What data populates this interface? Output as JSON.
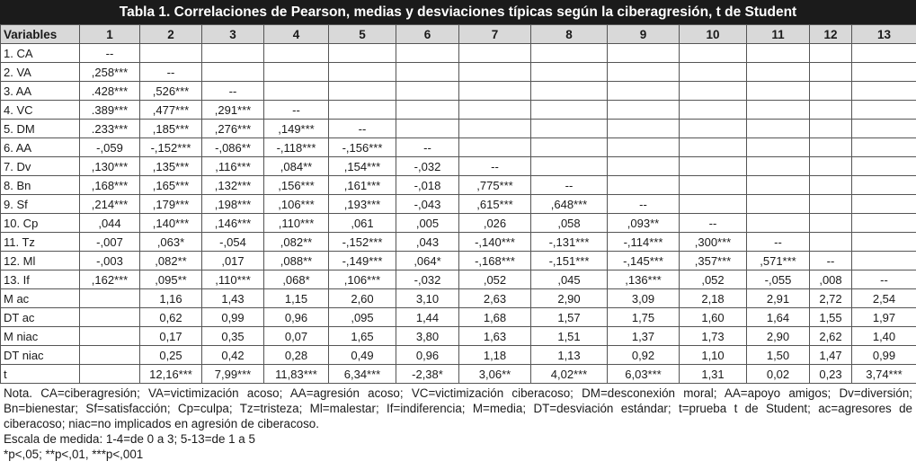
{
  "title": "Tabla 1. Correlaciones de Pearson, medias y desviaciones típicas según la ciberagresión, t de Student",
  "table": {
    "header": [
      "Variables",
      "1",
      "2",
      "3",
      "4",
      "5",
      "6",
      "7",
      "8",
      "9",
      "10",
      "11",
      "12",
      "13"
    ],
    "rows": [
      [
        "1. CA",
        "--",
        null,
        null,
        null,
        null,
        null,
        null,
        null,
        null,
        null,
        null,
        null,
        null
      ],
      [
        "2. VA",
        ",258***",
        "--",
        null,
        null,
        null,
        null,
        null,
        null,
        null,
        null,
        null,
        null,
        null
      ],
      [
        "3. AA",
        ".428***",
        ",526***",
        "--",
        null,
        null,
        null,
        null,
        null,
        null,
        null,
        null,
        null,
        null
      ],
      [
        "4. VC",
        ".389***",
        ",477***",
        ",291***",
        "--",
        null,
        null,
        null,
        null,
        null,
        null,
        null,
        null,
        null
      ],
      [
        "5. DM",
        ".233***",
        ",185***",
        ",276***",
        ",149***",
        "--",
        null,
        null,
        null,
        null,
        null,
        null,
        null,
        null
      ],
      [
        "6. AA",
        "-,059",
        "-,152***",
        "-,086**",
        "-,118***",
        "-,156***",
        "--",
        null,
        null,
        null,
        null,
        null,
        null,
        null
      ],
      [
        "7. Dv",
        ",130***",
        ",135***",
        ",116***",
        ",084**",
        ",154***",
        "-,032",
        "--",
        null,
        null,
        null,
        null,
        null,
        null
      ],
      [
        "8. Bn",
        ",168***",
        ",165***",
        ",132***",
        ",156***",
        ",161***",
        "-,018",
        ",775***",
        "--",
        null,
        null,
        null,
        null,
        null
      ],
      [
        "9. Sf",
        ",214***",
        ",179***",
        ",198***",
        ",106***",
        ",193***",
        "-,043",
        ",615***",
        ",648***",
        "--",
        null,
        null,
        null,
        null
      ],
      [
        "10. Cp",
        ",044",
        ",140***",
        ",146***",
        ",110***",
        ",061",
        ",005",
        ",026",
        ",058",
        ",093**",
        "--",
        null,
        null,
        null
      ],
      [
        "11. Tz",
        "-,007",
        ",063*",
        "-,054",
        ",082**",
        "-,152***",
        ",043",
        "-,140***",
        "-,131***",
        "-,114***",
        ",300***",
        "--",
        null,
        null
      ],
      [
        "12. Ml",
        "-,003",
        ",082**",
        ",017",
        ",088**",
        "-,149***",
        ",064*",
        "-,168***",
        "-,151***",
        "-,145***",
        ",357***",
        ",571***",
        "--",
        null
      ],
      [
        "13. If",
        ",162***",
        ",095**",
        ",110***",
        ",068*",
        ",106***",
        "-,032",
        ",052",
        ",045",
        ",136***",
        ",052",
        "-,055",
        ",008",
        "--"
      ],
      [
        "M ac",
        null,
        "1,16",
        "1,43",
        "1,15",
        "2,60",
        "3,10",
        "2,63",
        "2,90",
        "3,09",
        "2,18",
        "2,91",
        "2,72",
        "2,54"
      ],
      [
        "DT ac",
        null,
        "0,62",
        "0,99",
        "0,96",
        ",095",
        "1,44",
        "1,68",
        "1,57",
        "1,75",
        "1,60",
        "1,64",
        "1,55",
        "1,97"
      ],
      [
        "M niac",
        null,
        "0,17",
        "0,35",
        "0,07",
        "1,65",
        "3,80",
        "1,63",
        "1,51",
        "1,37",
        "1,73",
        "2,90",
        "2,62",
        "1,40"
      ],
      [
        "DT niac",
        null,
        "0,25",
        "0,42",
        "0,28",
        "0,49",
        "0,96",
        "1,18",
        "1,13",
        "0,92",
        "1,10",
        "1,50",
        "1,47",
        "0,99"
      ],
      [
        "t",
        null,
        "12,16***",
        "7,99***",
        "11,83***",
        "6,34***",
        "-2,38*",
        "3,06**",
        "4,02***",
        "6,03***",
        "1,31",
        "0,02",
        "0,23",
        "3,74***"
      ]
    ]
  },
  "notes": [
    "Nota. CA=ciberagresión; VA=victimización acoso; AA=agresión acoso; VC=victimización ciberacoso; DM=desconexión moral; AA=apoyo amigos; Dv=diversión; Bn=bienestar; Sf=satisfacción; Cp=culpa; Tz=tristeza; Ml=malestar; If=indiferencia; M=media; DT=desviación estándar; t=prueba t de Student; ac=agresores de ciberacoso; niac=no implicados en agresión de ciberacoso.",
    "Escala de medida: 1-4=de 0 a 3; 5-13=de 1 a 5",
    "*p<,05; **p<,01, ***p<,001"
  ]
}
